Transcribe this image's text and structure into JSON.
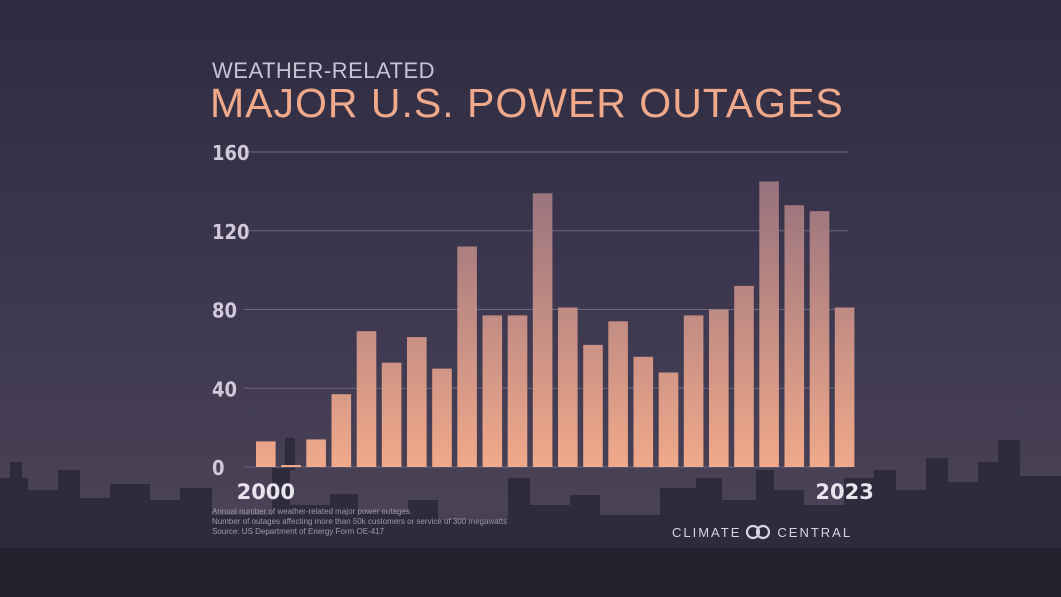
{
  "header": {
    "subtitle": "WEATHER-RELATED",
    "title": "MAJOR U.S. POWER OUTAGES"
  },
  "chart_data": {
    "type": "bar",
    "title": "MAJOR U.S. POWER OUTAGES",
    "subtitle": "WEATHER-RELATED",
    "categories": [
      2000,
      2001,
      2002,
      2003,
      2004,
      2005,
      2006,
      2007,
      2008,
      2009,
      2010,
      2011,
      2012,
      2013,
      2014,
      2015,
      2016,
      2017,
      2018,
      2019,
      2020,
      2021,
      2022,
      2023
    ],
    "values": [
      13,
      1,
      14,
      37,
      69,
      53,
      66,
      50,
      112,
      77,
      77,
      139,
      81,
      62,
      74,
      56,
      48,
      77,
      80,
      92,
      145,
      133,
      130,
      81
    ],
    "ylim": [
      0,
      160
    ],
    "yticks": [
      "0",
      "40",
      "80",
      "120",
      "160"
    ],
    "xtick_labels": [
      "2000",
      "2023"
    ],
    "grid": true,
    "legend": "none",
    "colors": {
      "bar_top": "#9c7a86",
      "bar_bottom": "#f0a98a",
      "title": "#f0a98a"
    }
  },
  "footnotes": [
    "Annual number of weather-related major power outages.",
    "Number of outages affecting more than 50k customers or service of 300 megawatts",
    "Source: US Department of Energy Form OE-417"
  ],
  "logo": {
    "left": "CLIMATE",
    "right": "CENTRAL",
    "icon": "climate-central-logo-icon"
  }
}
